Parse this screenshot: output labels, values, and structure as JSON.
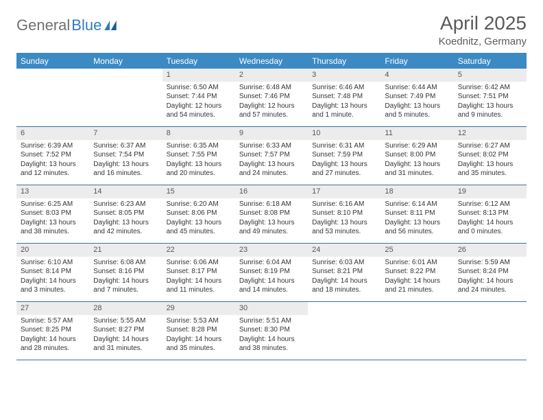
{
  "logo": {
    "part1": "General",
    "part2": "Blue"
  },
  "title": "April 2025",
  "location": "Koednitz, Germany",
  "colors": {
    "header_bg": "#3b8ac4",
    "row_border": "#3b6e9e",
    "daynum_bg": "#ececec",
    "logo_gray": "#707070",
    "logo_blue": "#2f7bbf"
  },
  "day_headers": [
    "Sunday",
    "Monday",
    "Tuesday",
    "Wednesday",
    "Thursday",
    "Friday",
    "Saturday"
  ],
  "weeks": [
    [
      {
        "n": "",
        "empty": true
      },
      {
        "n": "",
        "empty": true
      },
      {
        "n": "1",
        "sunrise": "Sunrise: 6:50 AM",
        "sunset": "Sunset: 7:44 PM",
        "daylight": "Daylight: 12 hours and 54 minutes."
      },
      {
        "n": "2",
        "sunrise": "Sunrise: 6:48 AM",
        "sunset": "Sunset: 7:46 PM",
        "daylight": "Daylight: 12 hours and 57 minutes."
      },
      {
        "n": "3",
        "sunrise": "Sunrise: 6:46 AM",
        "sunset": "Sunset: 7:48 PM",
        "daylight": "Daylight: 13 hours and 1 minute."
      },
      {
        "n": "4",
        "sunrise": "Sunrise: 6:44 AM",
        "sunset": "Sunset: 7:49 PM",
        "daylight": "Daylight: 13 hours and 5 minutes."
      },
      {
        "n": "5",
        "sunrise": "Sunrise: 6:42 AM",
        "sunset": "Sunset: 7:51 PM",
        "daylight": "Daylight: 13 hours and 9 minutes."
      }
    ],
    [
      {
        "n": "6",
        "sunrise": "Sunrise: 6:39 AM",
        "sunset": "Sunset: 7:52 PM",
        "daylight": "Daylight: 13 hours and 12 minutes."
      },
      {
        "n": "7",
        "sunrise": "Sunrise: 6:37 AM",
        "sunset": "Sunset: 7:54 PM",
        "daylight": "Daylight: 13 hours and 16 minutes."
      },
      {
        "n": "8",
        "sunrise": "Sunrise: 6:35 AM",
        "sunset": "Sunset: 7:55 PM",
        "daylight": "Daylight: 13 hours and 20 minutes."
      },
      {
        "n": "9",
        "sunrise": "Sunrise: 6:33 AM",
        "sunset": "Sunset: 7:57 PM",
        "daylight": "Daylight: 13 hours and 24 minutes."
      },
      {
        "n": "10",
        "sunrise": "Sunrise: 6:31 AM",
        "sunset": "Sunset: 7:59 PM",
        "daylight": "Daylight: 13 hours and 27 minutes."
      },
      {
        "n": "11",
        "sunrise": "Sunrise: 6:29 AM",
        "sunset": "Sunset: 8:00 PM",
        "daylight": "Daylight: 13 hours and 31 minutes."
      },
      {
        "n": "12",
        "sunrise": "Sunrise: 6:27 AM",
        "sunset": "Sunset: 8:02 PM",
        "daylight": "Daylight: 13 hours and 35 minutes."
      }
    ],
    [
      {
        "n": "13",
        "sunrise": "Sunrise: 6:25 AM",
        "sunset": "Sunset: 8:03 PM",
        "daylight": "Daylight: 13 hours and 38 minutes."
      },
      {
        "n": "14",
        "sunrise": "Sunrise: 6:23 AM",
        "sunset": "Sunset: 8:05 PM",
        "daylight": "Daylight: 13 hours and 42 minutes."
      },
      {
        "n": "15",
        "sunrise": "Sunrise: 6:20 AM",
        "sunset": "Sunset: 8:06 PM",
        "daylight": "Daylight: 13 hours and 45 minutes."
      },
      {
        "n": "16",
        "sunrise": "Sunrise: 6:18 AM",
        "sunset": "Sunset: 8:08 PM",
        "daylight": "Daylight: 13 hours and 49 minutes."
      },
      {
        "n": "17",
        "sunrise": "Sunrise: 6:16 AM",
        "sunset": "Sunset: 8:10 PM",
        "daylight": "Daylight: 13 hours and 53 minutes."
      },
      {
        "n": "18",
        "sunrise": "Sunrise: 6:14 AM",
        "sunset": "Sunset: 8:11 PM",
        "daylight": "Daylight: 13 hours and 56 minutes."
      },
      {
        "n": "19",
        "sunrise": "Sunrise: 6:12 AM",
        "sunset": "Sunset: 8:13 PM",
        "daylight": "Daylight: 14 hours and 0 minutes."
      }
    ],
    [
      {
        "n": "20",
        "sunrise": "Sunrise: 6:10 AM",
        "sunset": "Sunset: 8:14 PM",
        "daylight": "Daylight: 14 hours and 3 minutes."
      },
      {
        "n": "21",
        "sunrise": "Sunrise: 6:08 AM",
        "sunset": "Sunset: 8:16 PM",
        "daylight": "Daylight: 14 hours and 7 minutes."
      },
      {
        "n": "22",
        "sunrise": "Sunrise: 6:06 AM",
        "sunset": "Sunset: 8:17 PM",
        "daylight": "Daylight: 14 hours and 11 minutes."
      },
      {
        "n": "23",
        "sunrise": "Sunrise: 6:04 AM",
        "sunset": "Sunset: 8:19 PM",
        "daylight": "Daylight: 14 hours and 14 minutes."
      },
      {
        "n": "24",
        "sunrise": "Sunrise: 6:03 AM",
        "sunset": "Sunset: 8:21 PM",
        "daylight": "Daylight: 14 hours and 18 minutes."
      },
      {
        "n": "25",
        "sunrise": "Sunrise: 6:01 AM",
        "sunset": "Sunset: 8:22 PM",
        "daylight": "Daylight: 14 hours and 21 minutes."
      },
      {
        "n": "26",
        "sunrise": "Sunrise: 5:59 AM",
        "sunset": "Sunset: 8:24 PM",
        "daylight": "Daylight: 14 hours and 24 minutes."
      }
    ],
    [
      {
        "n": "27",
        "sunrise": "Sunrise: 5:57 AM",
        "sunset": "Sunset: 8:25 PM",
        "daylight": "Daylight: 14 hours and 28 minutes."
      },
      {
        "n": "28",
        "sunrise": "Sunrise: 5:55 AM",
        "sunset": "Sunset: 8:27 PM",
        "daylight": "Daylight: 14 hours and 31 minutes."
      },
      {
        "n": "29",
        "sunrise": "Sunrise: 5:53 AM",
        "sunset": "Sunset: 8:28 PM",
        "daylight": "Daylight: 14 hours and 35 minutes."
      },
      {
        "n": "30",
        "sunrise": "Sunrise: 5:51 AM",
        "sunset": "Sunset: 8:30 PM",
        "daylight": "Daylight: 14 hours and 38 minutes."
      },
      {
        "n": "",
        "empty": true
      },
      {
        "n": "",
        "empty": true
      },
      {
        "n": "",
        "empty": true
      }
    ]
  ]
}
